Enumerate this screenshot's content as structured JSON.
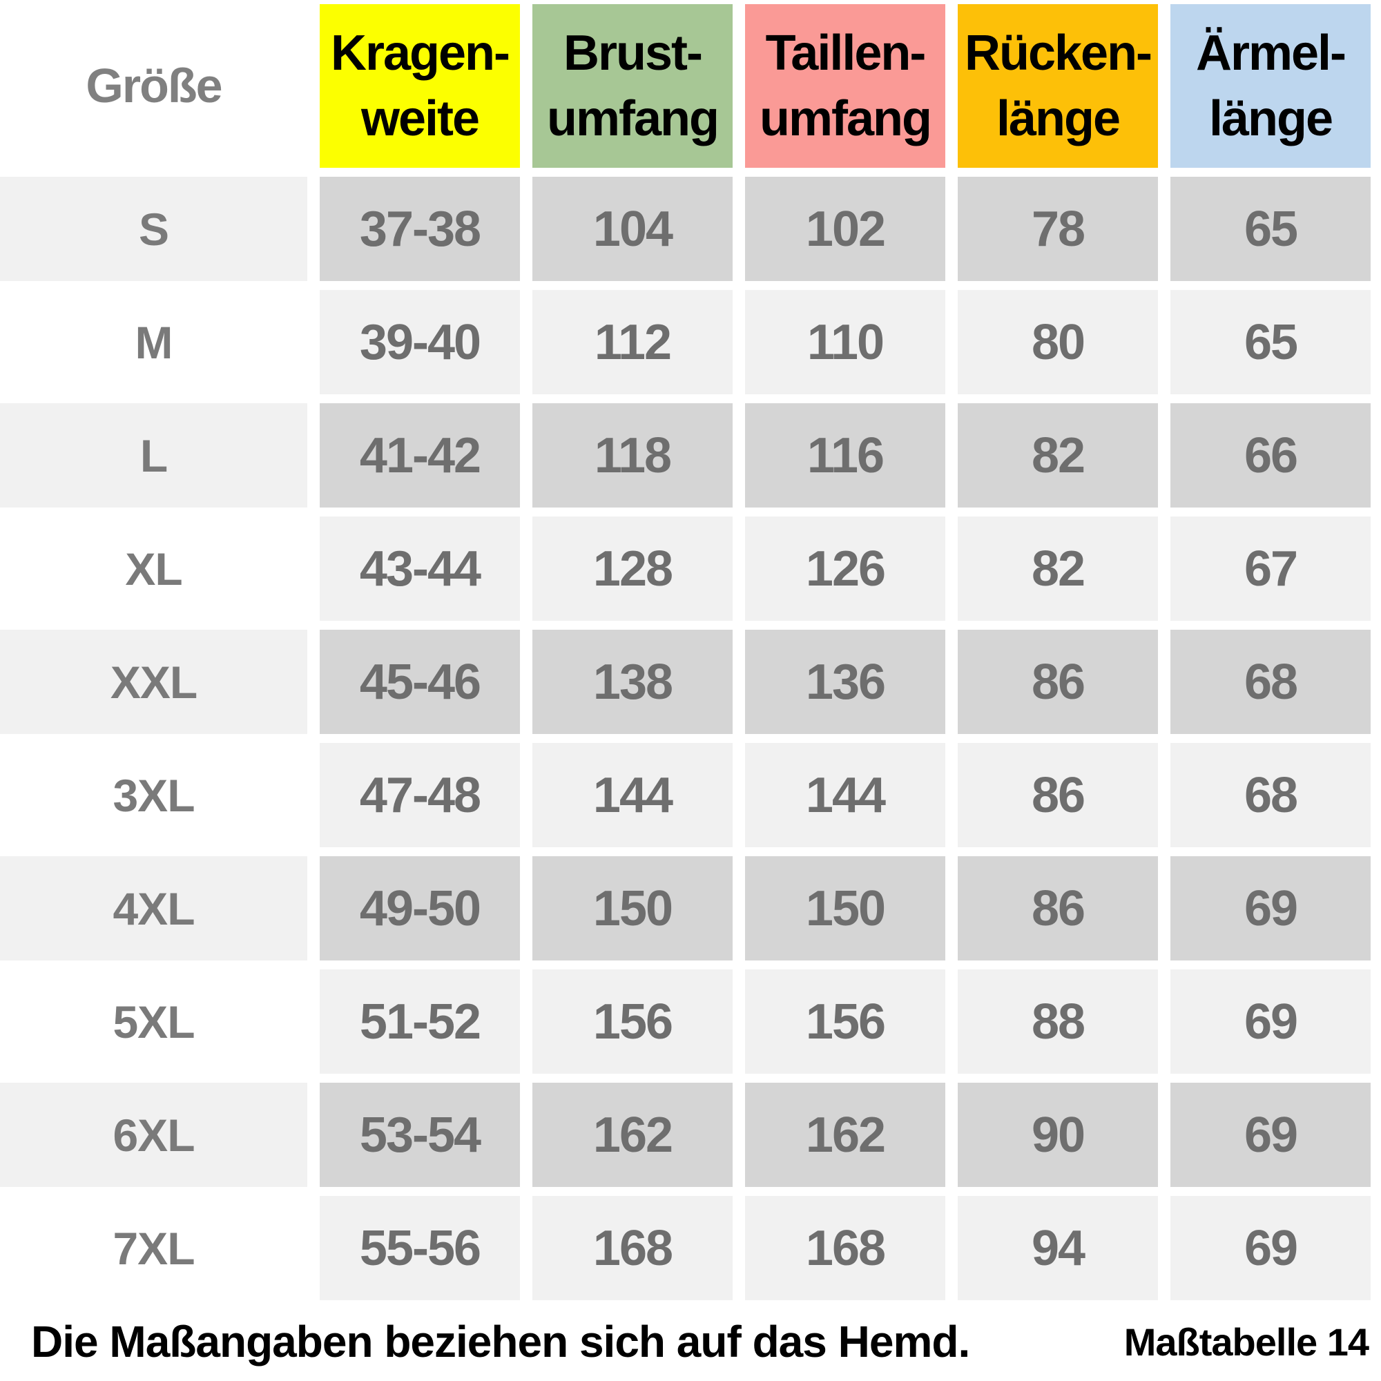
{
  "table": {
    "size_header": "Größe",
    "columns": [
      {
        "label_line1": "Kragen-",
        "label_line2": "weite",
        "color": "#fcff00"
      },
      {
        "label_line1": "Brust-",
        "label_line2": "umfang",
        "color": "#a7c795"
      },
      {
        "label_line1": "Taillen-",
        "label_line2": "umfang",
        "color": "#fa9a96"
      },
      {
        "label_line1": "Rücken-",
        "label_line2": "länge",
        "color": "#fdc008"
      },
      {
        "label_line1": "Ärmel-",
        "label_line2": "länge",
        "color": "#bdd6ee"
      }
    ],
    "rows": [
      {
        "size": "S",
        "values": [
          "37-38",
          "104",
          "102",
          "78",
          "65"
        ]
      },
      {
        "size": "M",
        "values": [
          "39-40",
          "112",
          "110",
          "80",
          "65"
        ]
      },
      {
        "size": "L",
        "values": [
          "41-42",
          "118",
          "116",
          "82",
          "66"
        ]
      },
      {
        "size": "XL",
        "values": [
          "43-44",
          "128",
          "126",
          "82",
          "67"
        ]
      },
      {
        "size": "XXL",
        "values": [
          "45-46",
          "138",
          "136",
          "86",
          "68"
        ]
      },
      {
        "size": "3XL",
        "values": [
          "47-48",
          "144",
          "144",
          "86",
          "68"
        ]
      },
      {
        "size": "4XL",
        "values": [
          "49-50",
          "150",
          "150",
          "86",
          "69"
        ]
      },
      {
        "size": "5XL",
        "values": [
          "51-52",
          "156",
          "156",
          "88",
          "69"
        ]
      },
      {
        "size": "6XL",
        "values": [
          "53-54",
          "162",
          "162",
          "90",
          "69"
        ]
      },
      {
        "size": "7XL",
        "values": [
          "55-56",
          "168",
          "168",
          "94",
          "69"
        ]
      }
    ]
  },
  "footer": {
    "note": "Die Maßangaben beziehen sich auf das Hemd.",
    "table_ref": "Maßtabelle 14"
  },
  "colors": {
    "header_text": "#000000",
    "size_header_text": "#808080",
    "value_text": "#6e6e6e",
    "label_text": "#7a7a7a",
    "row_dark_cell": "#d5d5d5",
    "row_dark_label": "#f1f1f1",
    "row_light_cell": "#f1f1f1",
    "row_light_label": "#ffffff",
    "footer_text": "#000000",
    "background": "#ffffff"
  },
  "chart_data": {
    "type": "table",
    "title": "Maßtabelle 14",
    "note": "Die Maßangaben beziehen sich auf das Hemd.",
    "columns": [
      "Größe",
      "Kragenweite",
      "Brustumfang",
      "Taillenumfang",
      "Rückenlänge",
      "Ärmellänge"
    ],
    "rows": [
      [
        "S",
        "37-38",
        104,
        102,
        78,
        65
      ],
      [
        "M",
        "39-40",
        112,
        110,
        80,
        65
      ],
      [
        "L",
        "41-42",
        118,
        116,
        82,
        66
      ],
      [
        "XL",
        "43-44",
        128,
        126,
        82,
        67
      ],
      [
        "XXL",
        "45-46",
        138,
        136,
        86,
        68
      ],
      [
        "3XL",
        "47-48",
        144,
        144,
        86,
        68
      ],
      [
        "4XL",
        "49-50",
        150,
        150,
        86,
        69
      ],
      [
        "5XL",
        "51-52",
        156,
        156,
        88,
        69
      ],
      [
        "6XL",
        "53-54",
        162,
        162,
        90,
        69
      ],
      [
        "7XL",
        "55-56",
        168,
        168,
        94,
        69
      ]
    ]
  }
}
